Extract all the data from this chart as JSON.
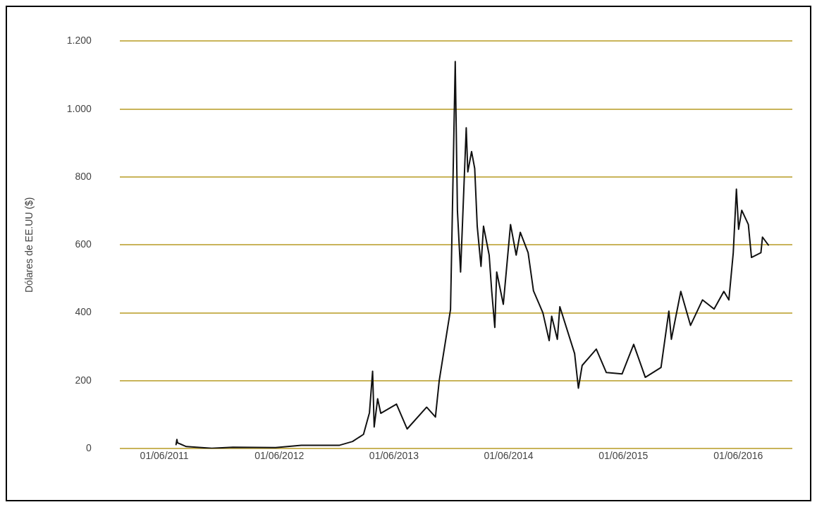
{
  "chart_data": {
    "type": "line",
    "ylabel": "Dólares de EE.UU ($)",
    "x": [
      "2011-07-08",
      "2011-07-11",
      "2011-07-13",
      "2011-08-10",
      "2011-10-30",
      "2012-01-05",
      "2012-05-20",
      "2012-08-10",
      "2012-12-10",
      "2013-01-20",
      "2013-02-24",
      "2013-03-15",
      "2013-03-25",
      "2013-03-30",
      "2013-04-10",
      "2013-04-20",
      "2013-06-09",
      "2013-07-13",
      "2013-09-13",
      "2013-10-11",
      "2013-10-23",
      "2013-11-28",
      "2013-12-05",
      "2013-12-13",
      "2013-12-20",
      "2013-12-30",
      "2014-01-17",
      "2014-01-22",
      "2014-02-03",
      "2014-02-13",
      "2014-02-21",
      "2014-03-05",
      "2014-03-13",
      "2014-03-31",
      "2014-04-08",
      "2014-04-18",
      "2014-04-24",
      "2014-05-15",
      "2014-06-07",
      "2014-06-25",
      "2014-07-08",
      "2014-08-02",
      "2014-08-19",
      "2014-09-18",
      "2014-10-08",
      "2014-10-16",
      "2014-11-03",
      "2014-11-11",
      "2014-12-28",
      "2015-01-09",
      "2015-01-21",
      "2015-03-07",
      "2015-04-08",
      "2015-05-28",
      "2015-07-04",
      "2015-08-10",
      "2015-09-29",
      "2015-10-24",
      "2015-11-01",
      "2015-12-01",
      "2016-01-01",
      "2016-02-08",
      "2016-03-16",
      "2016-04-16",
      "2016-05-02",
      "2016-05-16",
      "2016-05-26",
      "2016-06-02",
      "2016-06-12",
      "2016-07-03",
      "2016-07-13",
      "2016-08-12",
      "2016-08-17",
      "2016-09-06"
    ],
    "values": [
      10,
      27,
      17,
      6,
      1,
      4,
      3,
      10,
      10,
      21,
      42,
      106,
      228,
      64,
      147,
      104,
      131,
      58,
      122,
      93,
      200,
      410,
      750,
      1140,
      700,
      520,
      945,
      815,
      875,
      825,
      655,
      537,
      655,
      570,
      465,
      357,
      520,
      425,
      660,
      570,
      637,
      577,
      465,
      400,
      318,
      390,
      322,
      418,
      280,
      178,
      245,
      293,
      224,
      220,
      307,
      210,
      239,
      405,
      322,
      463,
      363,
      438,
      411,
      463,
      438,
      577,
      764,
      646,
      702,
      660,
      563,
      577,
      623,
      598
    ],
    "color": "#111111",
    "xlim": [
      "2011-01-10",
      "2016-11-20"
    ],
    "xticks": [
      {
        "value": "2011-06-01",
        "label": "01/06/2011"
      },
      {
        "value": "2012-06-01",
        "label": "01/06/2012"
      },
      {
        "value": "2013-06-01",
        "label": "01/06/2013"
      },
      {
        "value": "2014-06-01",
        "label": "01/06/2014"
      },
      {
        "value": "2015-06-01",
        "label": "01/06/2015"
      },
      {
        "value": "2016-06-01",
        "label": "01/06/2016"
      }
    ],
    "ylim": [
      0,
      1200
    ],
    "yticks": [
      0,
      200,
      400,
      600,
      800,
      {
        "value": 1000,
        "label": "1.000"
      },
      {
        "value": 1200,
        "label": "1.200"
      }
    ],
    "grid": "y",
    "marker": "none",
    "line_style": "solid",
    "legend": false
  }
}
